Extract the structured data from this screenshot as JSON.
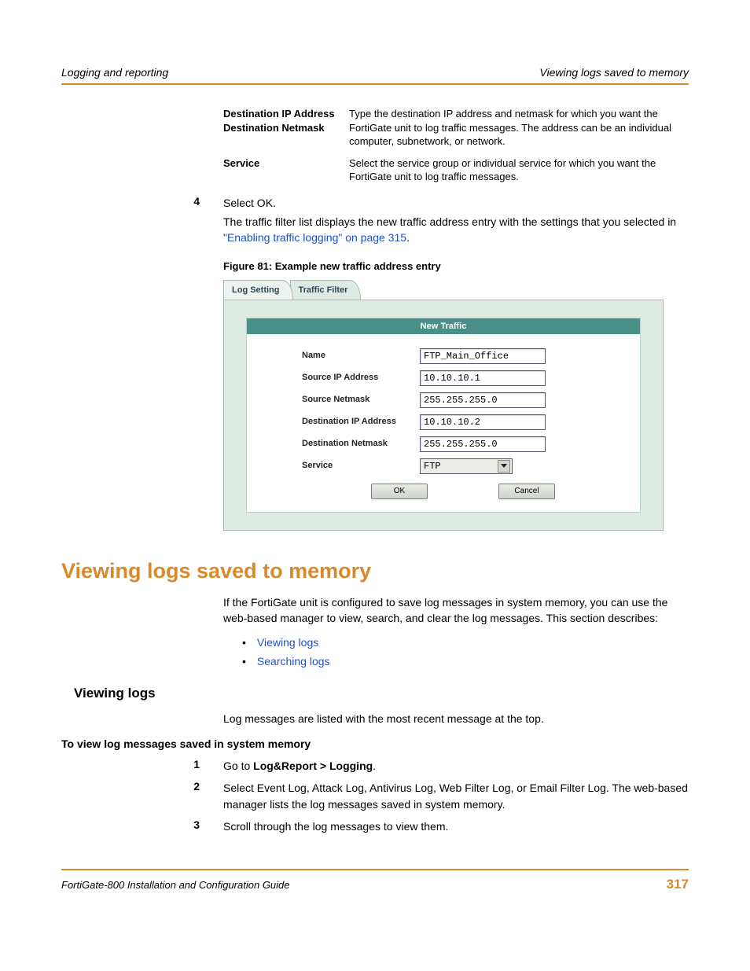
{
  "colors": {
    "accent": "#d88a2a",
    "link": "#1a4fd6",
    "panel_bg": "#dfeae2",
    "panel_title_bg": "#4a9088"
  },
  "header": {
    "left": "Logging and reporting",
    "right": "Viewing logs saved to memory"
  },
  "defs": [
    {
      "label": "Destination IP Address\nDestination Netmask",
      "desc": "Type the destination IP address and netmask for which you want the FortiGate unit to log traffic messages. The address can be an individual computer, subnetwork, or network."
    },
    {
      "label": "Service",
      "desc": "Select the service group or individual service for which you want the FortiGate unit to log traffic messages."
    }
  ],
  "step4": {
    "num": "4",
    "line1": "Select OK.",
    "line2a": "The traffic filter list displays the new traffic address entry with the settings that you selected in ",
    "link": "\"Enabling traffic logging\" on page 315",
    "line2b": "."
  },
  "figure": {
    "caption": "Figure 81: Example new traffic address entry",
    "tabs": {
      "log": "Log Setting",
      "filter": "Traffic Filter"
    },
    "title": "New Traffic",
    "fields": {
      "name": {
        "label": "Name",
        "value": "FTP_Main_Office"
      },
      "src_ip": {
        "label": "Source IP Address",
        "value": "10.10.10.1"
      },
      "src_mask": {
        "label": "Source Netmask",
        "value": "255.255.255.0"
      },
      "dst_ip": {
        "label": "Destination IP Address",
        "value": "10.10.10.2"
      },
      "dst_mask": {
        "label": "Destination Netmask",
        "value": "255.255.255.0"
      },
      "service": {
        "label": "Service",
        "value": "FTP"
      }
    },
    "buttons": {
      "ok": "OK",
      "cancel": "Cancel"
    }
  },
  "section": {
    "title": "Viewing logs saved to memory",
    "intro": "If the FortiGate unit is configured to save log messages in system memory, you can use the web-based manager to view, search, and clear the log messages. This section describes:",
    "links": {
      "view": "Viewing logs",
      "search": "Searching logs"
    }
  },
  "subsection": {
    "title": "Viewing logs",
    "intro": "Log messages are listed with the most recent message at the top.",
    "proc_title": "To view log messages saved in system memory",
    "steps": [
      {
        "num": "1",
        "html_pre": "Go to ",
        "bold": "Log&Report > Logging",
        "html_post": "."
      },
      {
        "num": "2",
        "text": "Select Event Log, Attack Log, Antivirus Log, Web Filter Log, or Email Filter Log. The web-based manager lists the log messages saved in system memory."
      },
      {
        "num": "3",
        "text": "Scroll through the log messages to view them."
      }
    ]
  },
  "footer": {
    "left": "FortiGate-800 Installation and Configuration Guide",
    "page": "317"
  }
}
